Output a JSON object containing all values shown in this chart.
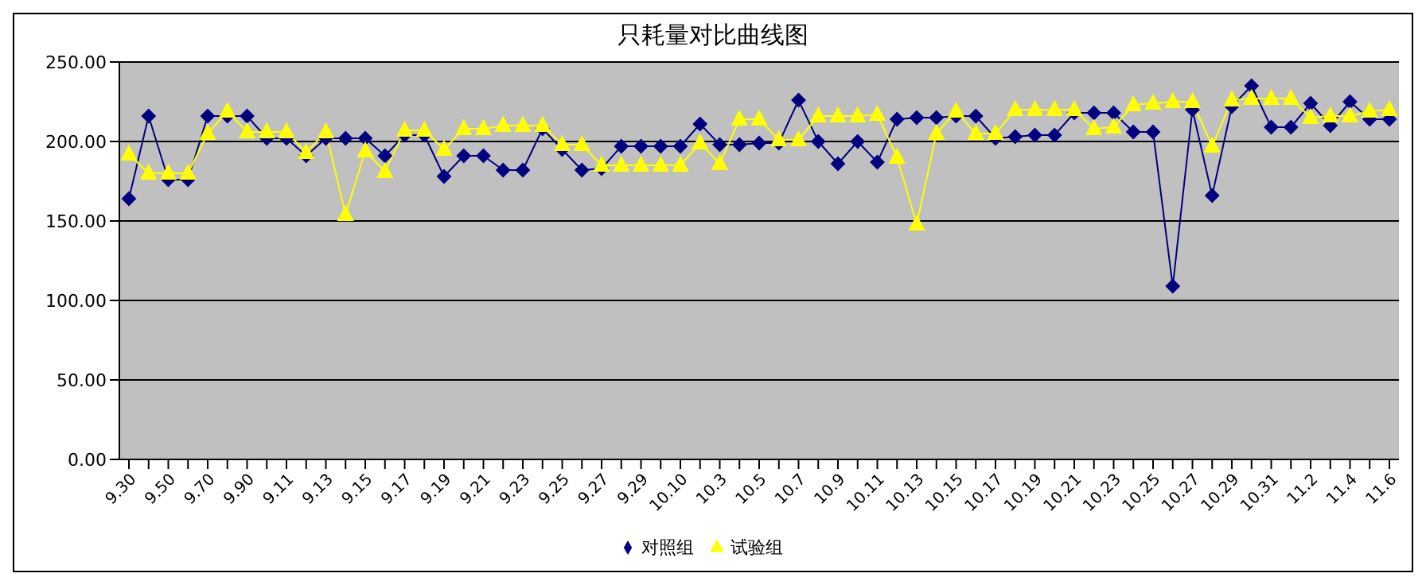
{
  "chart_data": {
    "type": "line",
    "title": "只耗量对比曲线图",
    "categories": [
      "9.30",
      null,
      "9.50",
      null,
      "9.70",
      null,
      "9.90",
      null,
      "9.11",
      null,
      "9.13",
      null,
      "9.15",
      null,
      "9.17",
      null,
      "9.19",
      null,
      "9.21",
      null,
      "9.23",
      null,
      "9.25",
      null,
      "9.27",
      null,
      "9.29",
      null,
      "10.10",
      null,
      "10.3",
      null,
      "10.5",
      null,
      "10.7",
      null,
      "10.9",
      null,
      "10.11",
      null,
      "10.13",
      null,
      "10.15",
      null,
      "10.17",
      null,
      "10.19",
      null,
      "10.21",
      null,
      "10.23",
      null,
      "10.25",
      null,
      "10.27",
      null,
      "10.29",
      null,
      "10.31",
      null,
      "11.2",
      null,
      "11.4",
      null,
      "11.6"
    ],
    "series": [
      {
        "name": "对照组",
        "color": "#000080",
        "marker": "diamond",
        "values": [
          164,
          216,
          176,
          176,
          216,
          216,
          216,
          202,
          202,
          191,
          202,
          202,
          202,
          191,
          204,
          204,
          178,
          191,
          191,
          182,
          182,
          208,
          195,
          182,
          183,
          197,
          197,
          197,
          197,
          211,
          198,
          198,
          199,
          199,
          226,
          200,
          186,
          200,
          187,
          214,
          215,
          215,
          216,
          216,
          202,
          203,
          204,
          204,
          218,
          218,
          218,
          206,
          206,
          109,
          220,
          166,
          222,
          235,
          209,
          209,
          224,
          210,
          225,
          214,
          214
        ]
      },
      {
        "name": "试验组",
        "color": "#ffff00",
        "marker": "triangle",
        "values": [
          192,
          180,
          180,
          180,
          205,
          219,
          206,
          206,
          206,
          193,
          206,
          154,
          194,
          181,
          207,
          207,
          195,
          208,
          208,
          210,
          210,
          210,
          198,
          198,
          185,
          185,
          185,
          185,
          185,
          199,
          186,
          214,
          214,
          201,
          201,
          216,
          216,
          216,
          217,
          190,
          148,
          205,
          219,
          205,
          205,
          220,
          220,
          220,
          220,
          208,
          209,
          223,
          224,
          225,
          225,
          197,
          226,
          227,
          227,
          227,
          215,
          216,
          216,
          219,
          220
        ]
      }
    ],
    "ylim": [
      0,
      250
    ],
    "yticks": [
      {
        "value": 0,
        "label": "0.00"
      },
      {
        "value": 50,
        "label": "50.00"
      },
      {
        "value": 100,
        "label": "100.00"
      },
      {
        "value": 150,
        "label": "150.00"
      },
      {
        "value": 200,
        "label": "200.00"
      },
      {
        "value": 250,
        "label": "250.00"
      }
    ],
    "grid": "y",
    "legend": "bottom",
    "line_style": "solid"
  }
}
